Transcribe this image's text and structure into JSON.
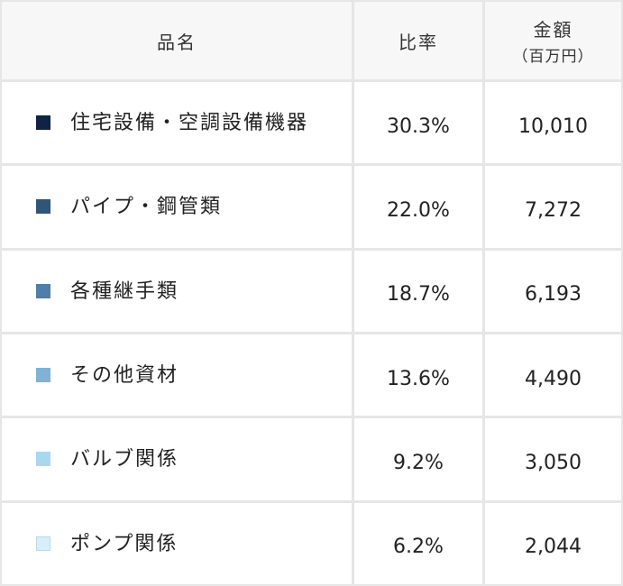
{
  "header": {
    "name": "品名",
    "ratio": "比率",
    "amount": "金額",
    "amount_unit": "（百万円）"
  },
  "rows": [
    {
      "name": "住宅設備・空調設備機器",
      "ratio": "30.3%",
      "amount": "10,010",
      "color": "#0f2444"
    },
    {
      "name": "パイプ・鋼管類",
      "ratio": "22.0%",
      "amount": "7,272",
      "color": "#2f5578"
    },
    {
      "name": "各種継手類",
      "ratio": "18.7%",
      "amount": "6,193",
      "color": "#4f7fa8"
    },
    {
      "name": "その他資材",
      "ratio": "13.6%",
      "amount": "4,490",
      "color": "#7fb2d6"
    },
    {
      "name": "バルブ関係",
      "ratio": "9.2%",
      "amount": "3,050",
      "color": "#a8d8f0"
    },
    {
      "name": "ポンプ関係",
      "ratio": "6.2%",
      "amount": "2,044",
      "color": "#d8eef9"
    }
  ]
}
